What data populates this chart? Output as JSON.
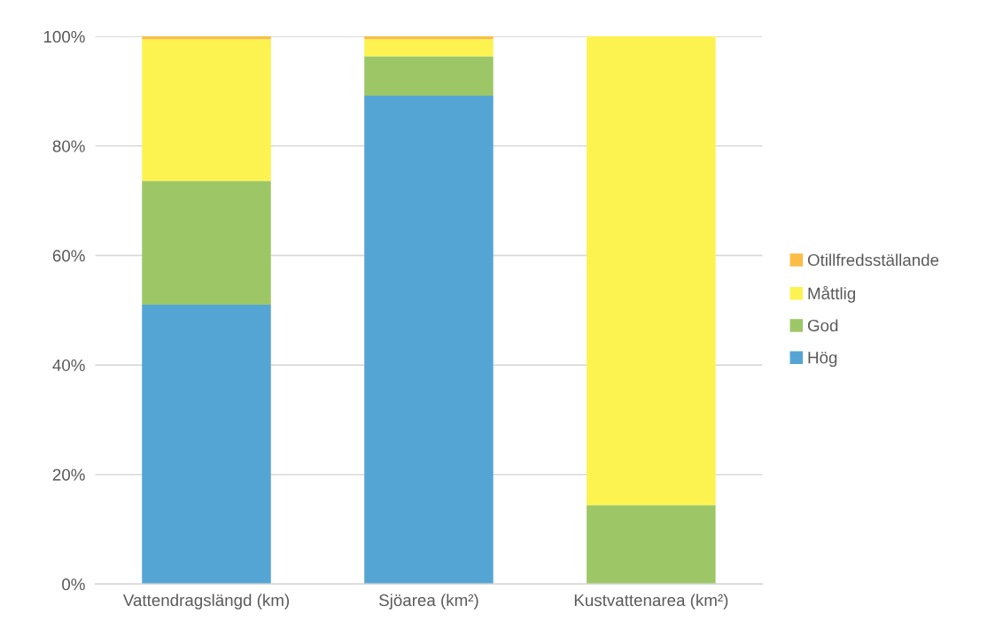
{
  "chart_data": {
    "type": "bar",
    "stacked": true,
    "categories": [
      "Vattendragslängd (km)",
      "Sjöarea (km²)",
      "Kustvattenarea (km²)"
    ],
    "series": [
      {
        "name": "Hög",
        "color": "#55a5d4",
        "values": [
          51.0,
          89.2,
          0
        ]
      },
      {
        "name": "God",
        "color": "#9dc766",
        "values": [
          22.6,
          7.2,
          14.4
        ]
      },
      {
        "name": "Måttlig",
        "color": "#fdf350",
        "values": [
          25.9,
          3.1,
          85.6
        ]
      },
      {
        "name": "Otillfredsställande",
        "color": "#fbbd45",
        "values": [
          0.5,
          0.5,
          0
        ]
      }
    ],
    "ylim": [
      0,
      100
    ],
    "yticks": [
      {
        "value": 0,
        "label": "0%"
      },
      {
        "value": 20,
        "label": "20%"
      },
      {
        "value": 40,
        "label": "40%"
      },
      {
        "value": 60,
        "label": "60%"
      },
      {
        "value": 80,
        "label": "80%"
      },
      {
        "value": 100,
        "label": "100%"
      }
    ],
    "grid": "y",
    "legend": "right"
  }
}
